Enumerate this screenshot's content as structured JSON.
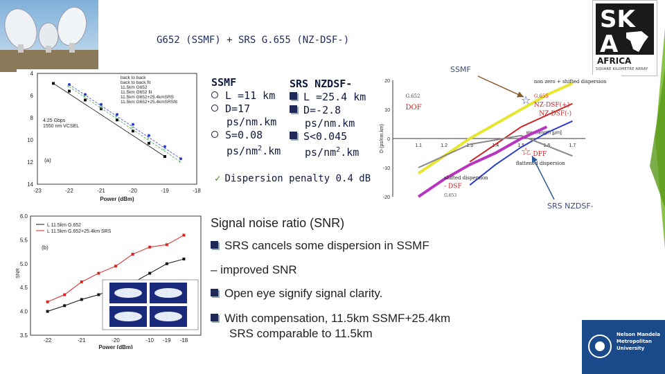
{
  "slide": {
    "title": "G652 (SSMF) + SRS G.655 (NZ-DSF-)",
    "ssmf": {
      "heading": "SSMF",
      "l": "L =11 km",
      "d": "D=17",
      "d_unit": "ps/nm.km",
      "s": "S=0.08",
      "s_unit_a": "ps/nm",
      "s_unit_sup": "2",
      "s_unit_b": ".km"
    },
    "srs": {
      "heading": "SRS NZDSF-",
      "l": "L =25.4 km",
      "d": "D=-2.8",
      "d_unit": "ps/nm.km",
      "s": "S<0.045",
      "s_unit_a": "ps/nm",
      "s_unit_sup": "2",
      "s_unit_b": ".km"
    },
    "penalty": "Dispersion penalty 0.4 dB",
    "snr": {
      "heading": "Signal noise ratio (SNR)",
      "bullet1": "SRS cancels some dispersion in SSMF",
      "bullet1b": "– improved SNR",
      "bullet2": "Open eye signify signal clarity.",
      "bullet3a": "With compensation, 11.5km SSMF+25.4km",
      "bullet3b": "SRS comparable to 11.5km"
    },
    "annotations": {
      "ssmf_label": "SSMF",
      "srs_label": "SRS NZDSF-"
    },
    "colors": {
      "accent_green": "#4a8a1a",
      "title_blue": "#1f2a5a",
      "arrow_blue": "#2b5a9a"
    }
  },
  "logos": {
    "ska": {
      "tagline": "SQUARE KILOMETRE ARRAY",
      "word": "AFRICA"
    },
    "nmmu": {
      "line1": "Nelson Mandela",
      "line2": "Metropolitan",
      "line3": "University"
    }
  },
  "chart_data": [
    {
      "type": "scatter",
      "title": "",
      "xlabel": "Power (dBm)",
      "ylabel": "",
      "xticks": [
        "-23",
        "-22",
        "-21",
        "-20",
        "-19",
        "-18"
      ],
      "yticks": [
        "4",
        "6",
        "8",
        "10",
        "12",
        "14"
      ],
      "xlim": [
        -23,
        -18
      ],
      "ylim": [
        4,
        14
      ],
      "panel_label": "(a)",
      "inset_text": [
        "4.25 Gbps",
        "1550 nm VCSEL"
      ],
      "legend": [
        "back to back",
        "back to back fit",
        "11.5km G652",
        "11.5km G652 fit",
        "11.5km G652+25.4kmSRS",
        "11.5km G652+25.4kmSRSfit"
      ],
      "series": [
        {
          "name": "back to back",
          "x": [
            -22.5,
            -22,
            -21.5,
            -21,
            -20.5,
            -20,
            -19.5,
            -19
          ],
          "y": [
            4.9,
            5.6,
            6.4,
            7.2,
            8.2,
            9.2,
            10.3,
            11.5
          ]
        },
        {
          "name": "11.5km G652",
          "x": [
            -22,
            -21.5,
            -21,
            -20.5,
            -20,
            -19.5,
            -19,
            -18.5
          ],
          "y": [
            5.0,
            5.9,
            6.8,
            7.7,
            8.6,
            9.6,
            10.6,
            11.7
          ]
        },
        {
          "name": "11.5km G652+25.4kmSRS",
          "x": [
            -22,
            -21.5,
            -21,
            -20.5,
            -20,
            -19.5,
            -19,
            -18.5
          ],
          "y": [
            5.2,
            6.1,
            7.0,
            7.9,
            8.9,
            9.9,
            10.9,
            12.0
          ]
        }
      ]
    },
    {
      "type": "line",
      "title": "",
      "xlabel": "Power (dBm)",
      "ylabel": "SNR",
      "xticks": [
        "-22",
        "-21",
        "-20",
        "-10",
        "-19",
        "-18"
      ],
      "yticks": [
        "3.5",
        "4.0",
        "4.5",
        "5.0",
        "5.5",
        "6.0"
      ],
      "ylim": [
        3.5,
        6.0
      ],
      "panel_label": "(b)",
      "legend": [
        "L 11.5km G.652",
        "L 11.5km G.652+25.4km SRS"
      ],
      "series": [
        {
          "name": "L 11.5km G.652",
          "x": [
            -22,
            -21.5,
            -21,
            -20.5,
            -20,
            -19.5,
            -19,
            -18.5,
            -18
          ],
          "y": [
            4.0,
            4.12,
            4.25,
            4.35,
            4.48,
            4.6,
            4.8,
            5.0,
            5.1
          ]
        },
        {
          "name": "L 11.5km G.652+25.4km SRS",
          "x": [
            -22,
            -21.5,
            -21,
            -20.5,
            -20,
            -19.5,
            -19,
            -18.5,
            -18
          ],
          "y": [
            4.2,
            4.35,
            4.62,
            4.8,
            4.95,
            5.2,
            5.35,
            5.4,
            5.6
          ]
        }
      ]
    },
    {
      "type": "line",
      "title": "",
      "xlabel": "wavelength [µm]",
      "ylabel": "D (ps/nm.km)",
      "xticks": [
        "1.1",
        "1.2",
        "1.3",
        "1.4",
        "1.5",
        "1.6",
        "1.7"
      ],
      "yticks": [
        "20",
        "10",
        "0",
        "-10",
        "-20"
      ],
      "xlim": [
        1.0,
        1.75
      ],
      "ylim": [
        -20,
        20
      ],
      "labels": [
        "G.652",
        "DOF",
        "non zero + shifted dispersion",
        "G.655",
        "NZ-DSF(+)",
        "NZ-DSF(-)",
        "- DFF",
        "flattened dispersion",
        "shifted dispersion",
        "- DSF",
        "G.653"
      ],
      "series": [
        {
          "name": "G.652",
          "x": [
            1.1,
            1.2,
            1.3,
            1.4,
            1.5,
            1.6,
            1.7
          ],
          "y": [
            -12,
            -6,
            0,
            5,
            10,
            15,
            19
          ]
        },
        {
          "name": "NZ-DSF(+)",
          "x": [
            1.3,
            1.4,
            1.5,
            1.6,
            1.7
          ],
          "y": [
            -8,
            -2,
            4,
            8,
            12
          ]
        },
        {
          "name": "NZ-DSF(-)",
          "x": [
            1.3,
            1.4,
            1.5,
            1.6,
            1.7
          ],
          "y": [
            -16,
            -9,
            -3,
            2,
            6
          ]
        },
        {
          "name": "DFF",
          "x": [
            1.1,
            1.3,
            1.5,
            1.7
          ],
          "y": [
            -10,
            -2,
            1,
            -6
          ]
        },
        {
          "name": "DSF",
          "x": [
            1.1,
            1.2,
            1.3,
            1.4,
            1.5,
            1.6
          ],
          "y": [
            -20,
            -14,
            -9,
            -5,
            0,
            4
          ]
        }
      ]
    }
  ]
}
